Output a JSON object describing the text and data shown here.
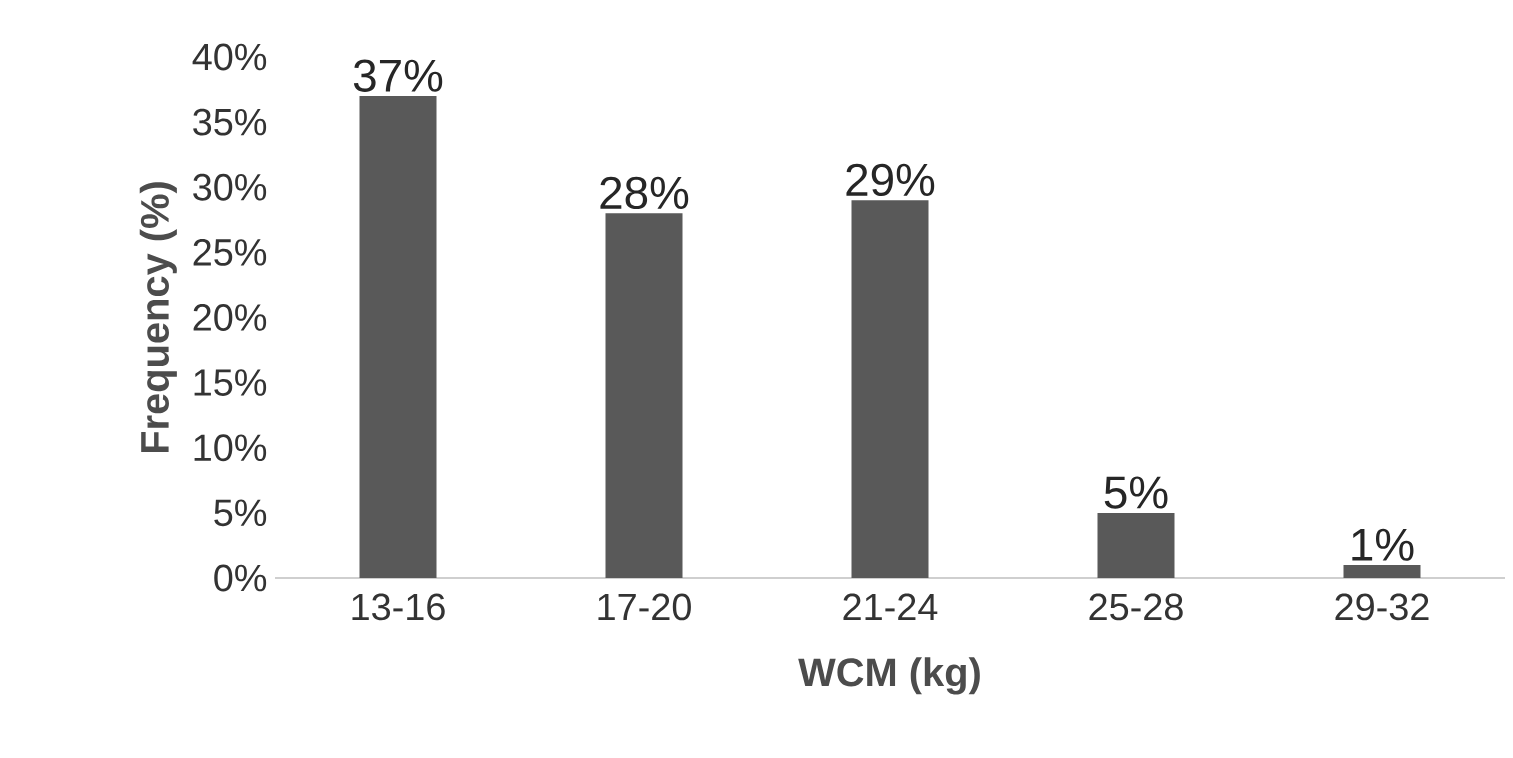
{
  "chart_data": {
    "type": "bar",
    "xlabel": "WCM (kg)",
    "ylabel": "Frequency (%)",
    "categories": [
      "13-16",
      "17-20",
      "21-24",
      "25-28",
      "29-32"
    ],
    "values": [
      37,
      28,
      29,
      5,
      1
    ],
    "value_labels": [
      "37%",
      "28%",
      "29%",
      "5%",
      "1%"
    ],
    "color": "#595959",
    "ylim": [
      0,
      40
    ],
    "yticks": [
      {
        "value": 0,
        "label": "0%"
      },
      {
        "value": 5,
        "label": "5%"
      },
      {
        "value": 10,
        "label": "10%"
      },
      {
        "value": 15,
        "label": "15%"
      },
      {
        "value": 20,
        "label": "20%"
      },
      {
        "value": 25,
        "label": "25%"
      },
      {
        "value": 30,
        "label": "30%"
      },
      {
        "value": 35,
        "label": "35%"
      },
      {
        "value": 40,
        "label": "40%"
      }
    ]
  }
}
